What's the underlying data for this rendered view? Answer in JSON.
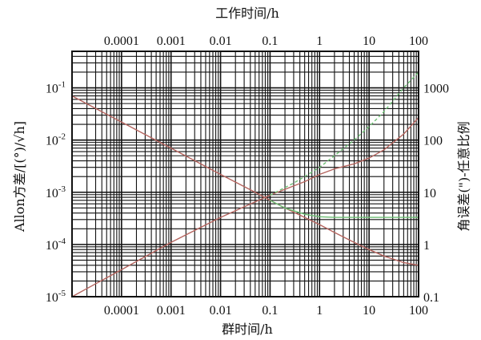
{
  "chart_data": {
    "type": "line",
    "x_scale": "log",
    "y_scale": "log",
    "grid": true,
    "xlabel": "群时间/h",
    "x2label": "工作时间/h",
    "ylabel": "Allon方差/[(°)/√h]",
    "y2label": "角误差(\")-任意比例",
    "xlim": [
      1e-05,
      100
    ],
    "ylim": [
      1e-05,
      0.5
    ],
    "y2lim": [
      0.1,
      5000
    ],
    "x_tick_labels": [
      "0.0001",
      "0.001",
      "0.01",
      "0.1",
      "1",
      "10",
      "100"
    ],
    "x2_tick_labels": [
      "0.0001",
      "0.001",
      "0.01",
      "0.1",
      "1",
      "10",
      "100"
    ],
    "y_tick_labels": [
      {
        "base": "10",
        "exp": "-1"
      },
      {
        "base": "10",
        "exp": "-2"
      },
      {
        "base": "10",
        "exp": "-3"
      },
      {
        "base": "10",
        "exp": "-4"
      },
      {
        "base": "10",
        "exp": "-5"
      }
    ],
    "y2_tick_labels": [
      "1000",
      "100",
      "10",
      "1",
      "0.1"
    ],
    "colors": {
      "descending": "#b5655f",
      "ascending": "#b5655f",
      "green": "#6dbf74",
      "grid": "#111111",
      "frame": "#111111"
    },
    "series": [
      {
        "color": "#b5655f",
        "style": "solid",
        "axis": "left",
        "x": [
          1e-05,
          0.0001,
          0.001,
          0.01,
          0.05,
          0.1,
          0.2,
          0.5,
          1,
          2,
          5,
          10,
          20,
          50,
          100
        ],
        "y": [
          0.07,
          0.022,
          0.007,
          0.0022,
          0.001,
          0.0007,
          0.0005,
          0.00033,
          0.00024,
          0.00017,
          0.00011,
          8e-05,
          6e-05,
          4.5e-05,
          4e-05
        ]
      },
      {
        "color": "#b5655f",
        "style": "solid",
        "axis": "left",
        "x": [
          1e-05,
          0.0001,
          0.001,
          0.01,
          0.1,
          0.5,
          1,
          2,
          5,
          10,
          20,
          50,
          100
        ],
        "y": [
          1e-05,
          3.3e-05,
          0.00011,
          0.00033,
          0.00088,
          0.0016,
          0.0022,
          0.0028,
          0.0035,
          0.0045,
          0.0065,
          0.013,
          0.027
        ]
      },
      {
        "color": "#6dbf74",
        "style": "dashed",
        "axis": "left",
        "x": [
          0.1,
          0.3,
          0.5,
          1,
          2,
          5,
          10,
          20,
          50,
          100
        ],
        "y": [
          0.00088,
          0.0015,
          0.002,
          0.003,
          0.005,
          0.01,
          0.018,
          0.035,
          0.1,
          0.2
        ]
      },
      {
        "color": "#6dbf74",
        "style": "solid",
        "axis": "left",
        "x": [
          0.1,
          0.2,
          0.5,
          1,
          2,
          5,
          10,
          20,
          50,
          100
        ],
        "y": [
          0.0007,
          0.0005,
          0.00038,
          0.00034,
          0.00033,
          0.00033,
          0.00033,
          0.00033,
          0.00033,
          0.00033
        ]
      }
    ]
  }
}
